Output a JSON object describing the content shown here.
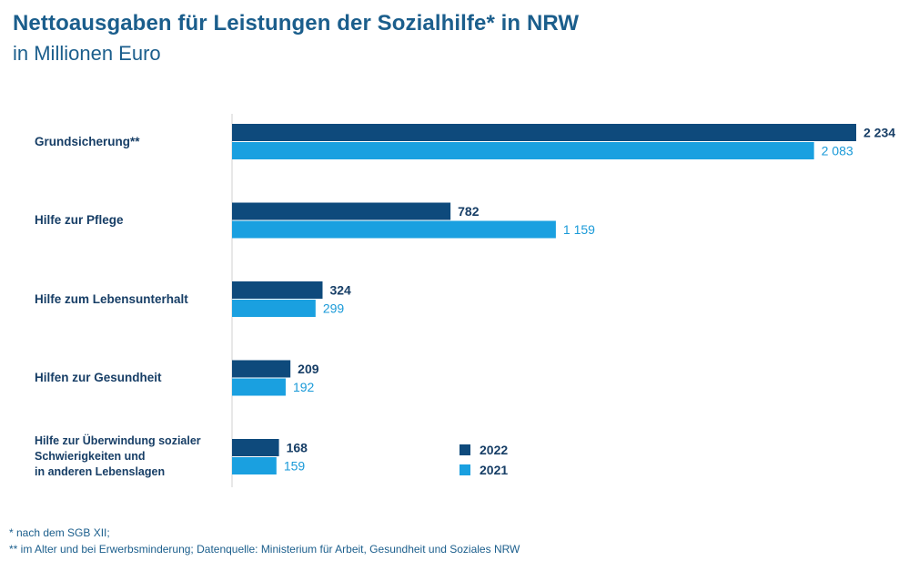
{
  "title": "Nettoausgaben für Leistungen der Sozialhilfe* in NRW",
  "subtitle": "in Millionen Euro",
  "colors": {
    "y2022": "#0e4a7c",
    "y2021": "#1aa0e0",
    "text_2022": "#173e66",
    "text_2021": "#1a9ad8"
  },
  "chart_data": {
    "type": "bar",
    "orientation": "horizontal",
    "categories": [
      "Grundsicherung**",
      "Hilfe zur Pflege",
      "Hilfe zum Lebensunterhalt",
      "Hilfen zur Gesundheit",
      "Hilfe zur Überwindung sozialer Schwierigkeiten und in anderen Lebenslagen"
    ],
    "series": [
      {
        "name": "2022",
        "values": [
          2234,
          782,
          324,
          209,
          168
        ],
        "labels": [
          "2 234",
          "782",
          "324",
          "209",
          "168"
        ]
      },
      {
        "name": "2021",
        "values": [
          2083,
          1159,
          299,
          192,
          159
        ],
        "labels": [
          "2 083",
          "1 159",
          "299",
          "192",
          "159"
        ]
      }
    ],
    "xlim": [
      0,
      2234
    ],
    "legend_position": "bottom-center"
  },
  "category_lines": [
    [
      "Grundsicherung**"
    ],
    [
      "Hilfe zur Pflege"
    ],
    [
      "Hilfe zum Lebensunterhalt"
    ],
    [
      "Hilfen zur Gesundheit"
    ],
    [
      "Hilfe zur Überwindung sozialer",
      "Schwierigkeiten und",
      "in anderen Lebenslagen"
    ]
  ],
  "footnotes": [
    "* nach dem SGB XII;",
    "** im Alter und bei  Erwerbsminderung; Datenquelle: Ministerium für Arbeit, Gesundheit und Soziales NRW"
  ]
}
